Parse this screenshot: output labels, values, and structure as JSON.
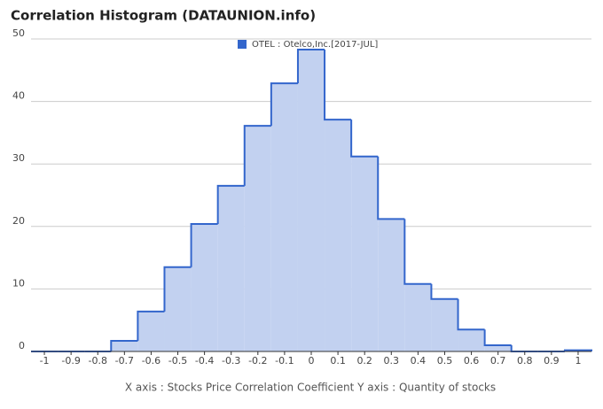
{
  "chart_data": {
    "type": "histogram",
    "title": "Correlation Histogram (DATAUNION.info)",
    "x_label": "X axis : Stocks Price Correlation Coefficient  Y axis : Quantity of stocks",
    "bins": [
      -1.05,
      -0.95,
      -0.85,
      -0.75,
      -0.65,
      -0.55,
      -0.45,
      -0.35,
      -0.25,
      -0.15,
      -0.05,
      0.05,
      0.15,
      0.25,
      0.35,
      0.45,
      0.55,
      0.65,
      0.75,
      0.85,
      0.95,
      1.05
    ],
    "series": [
      {
        "name": "OTEL : Otelco,Inc.[2017-JUL]",
        "color": "#3366cc",
        "fill": "#c2d1f0",
        "values": [
          0,
          0,
          0,
          1.7,
          6.4,
          13.5,
          20.4,
          26.5,
          36.1,
          42.9,
          48.3,
          37.1,
          31.2,
          21.2,
          10.8,
          8.4,
          3.5,
          1.0,
          0,
          0,
          0.2
        ]
      }
    ],
    "xlim": [
      -1.05,
      1.05
    ],
    "xticks": [
      -1,
      -0.9,
      -0.8,
      -0.7,
      -0.6,
      -0.5,
      -0.4,
      -0.3,
      -0.2,
      -0.1,
      0,
      0.1,
      0.2,
      0.3,
      0.4,
      0.5,
      0.6,
      0.7,
      0.8,
      0.9,
      1
    ],
    "ylim": [
      0,
      50
    ],
    "yticks": [
      0,
      10,
      20,
      30,
      40,
      50
    ],
    "grid": true
  }
}
